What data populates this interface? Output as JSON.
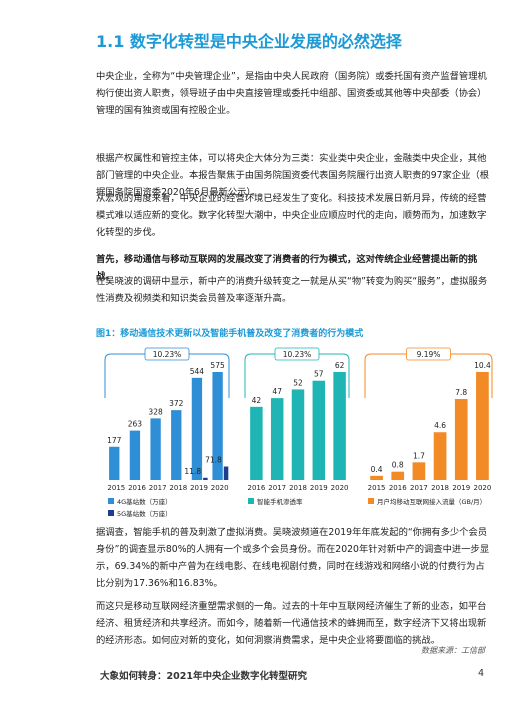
{
  "heading": "1.1 数字化转型是中央企业发展的必然选择",
  "paragraphs": [
    {
      "text": "中央企业，全称为“中央管理企业”，是指由中央人民政府（国务院）或委托国有资产监督管理机构行使出资人职责，领导班子由中央直接管理或委托中组部、国资委或其他等中央部委（协会）管理的国有独资或国有控股企业。",
      "bold": false
    },
    {
      "text": "根据产权属性和管控主体，可以将央企大体分为三类：实业类中央企业，金融类中央企业，其他部门管理的中央企业。本报告聚焦于由国务院国资委代表国务院履行出资人职责的97家企业（根据国务院国资委2020年6月最新公示）。",
      "bold": false
    },
    {
      "text": "从宏观的角度来看，中央企业的经营环境已经发生了变化。科技技术发展日新月异，传统的经营模式难以适应新的变化。数字化转型大潮中，中央企业应顺应时代的走向，顺势而为，加速数字化转型的步伐。",
      "bold": false
    },
    {
      "text": "首先，移动通信与移动互联网的发展改变了消费者的行为模式，这对传统企业经营提出新的挑战。",
      "bold": true
    },
    {
      "text": "在吴晓波的调研中显示，新中产的消费升级转变之一就是从买“物”转变为购买“服务”，虚拟服务性消费及视频类和知识类会员普及率逐渐升高。",
      "bold": false
    }
  ],
  "figure_caption": "图1：移动通信技术更新以及智能手机普及改变了消费者的行为模式",
  "chart_data": [
    {
      "type": "bar",
      "bracket_label": "10.23%",
      "categories": [
        "2015",
        "2016",
        "2017",
        "2018",
        "2019",
        "2020"
      ],
      "series": [
        {
          "name": "4G基站数（万座）",
          "color": "#2f8fd6",
          "values": [
            177,
            263,
            328,
            372,
            544,
            575
          ]
        },
        {
          "name": "5G基站数（万座）",
          "color": "#1f3d8f",
          "values": [
            null,
            null,
            null,
            null,
            11.8,
            71.8
          ]
        }
      ]
    },
    {
      "type": "bar",
      "bracket_label": "10.23%",
      "categories": [
        "2016",
        "2017",
        "2018",
        "2019",
        "2020"
      ],
      "series": [
        {
          "name": "智能手机渗透率",
          "color": "#1fb5b5",
          "values": [
            42,
            47,
            52,
            57,
            62
          ]
        }
      ]
    },
    {
      "type": "bar",
      "bracket_label": "9.19%",
      "categories": [
        "2015",
        "2016",
        "2017",
        "2018",
        "2019",
        "2020"
      ],
      "series": [
        {
          "name": "月户均移动互联网接入流量（GB/月）",
          "color": "#f28a26",
          "values": [
            0.4,
            0.8,
            1.7,
            4.6,
            7.8,
            10.4
          ]
        }
      ]
    }
  ],
  "paragraphs_after": [
    {
      "text": "据调查，智能手机的普及刺激了虚拟消费。吴晓波频道在2019年年底发起的“你拥有多少个会员身份”的调查显示80%的人拥有一个或多个会员身份。而在2020年针对新中产的调查中进一步显示，69.34%的新中产曾为在线电影、在线电视剧付费，同时在线游戏和网络小说的付费行为占比分别为17.36%和16.83%。"
    },
    {
      "text": "而这只是移动互联网经济重塑需求侧的一角。过去的十年中互联网经济催生了新的业态，如平台经济、租赁经济和共享经济。而如今，随着新一代通信技术的蜂拥而至，数字经济下又将出现新的经济形态。如何应对新的变化，如何洞察消费需求，是中央企业将要面临的挑战。"
    }
  ],
  "source": "数据来源：工信部",
  "footer": {
    "title": "大象如何转身：2021年中央企业数字化转型研究",
    "page": "4"
  }
}
